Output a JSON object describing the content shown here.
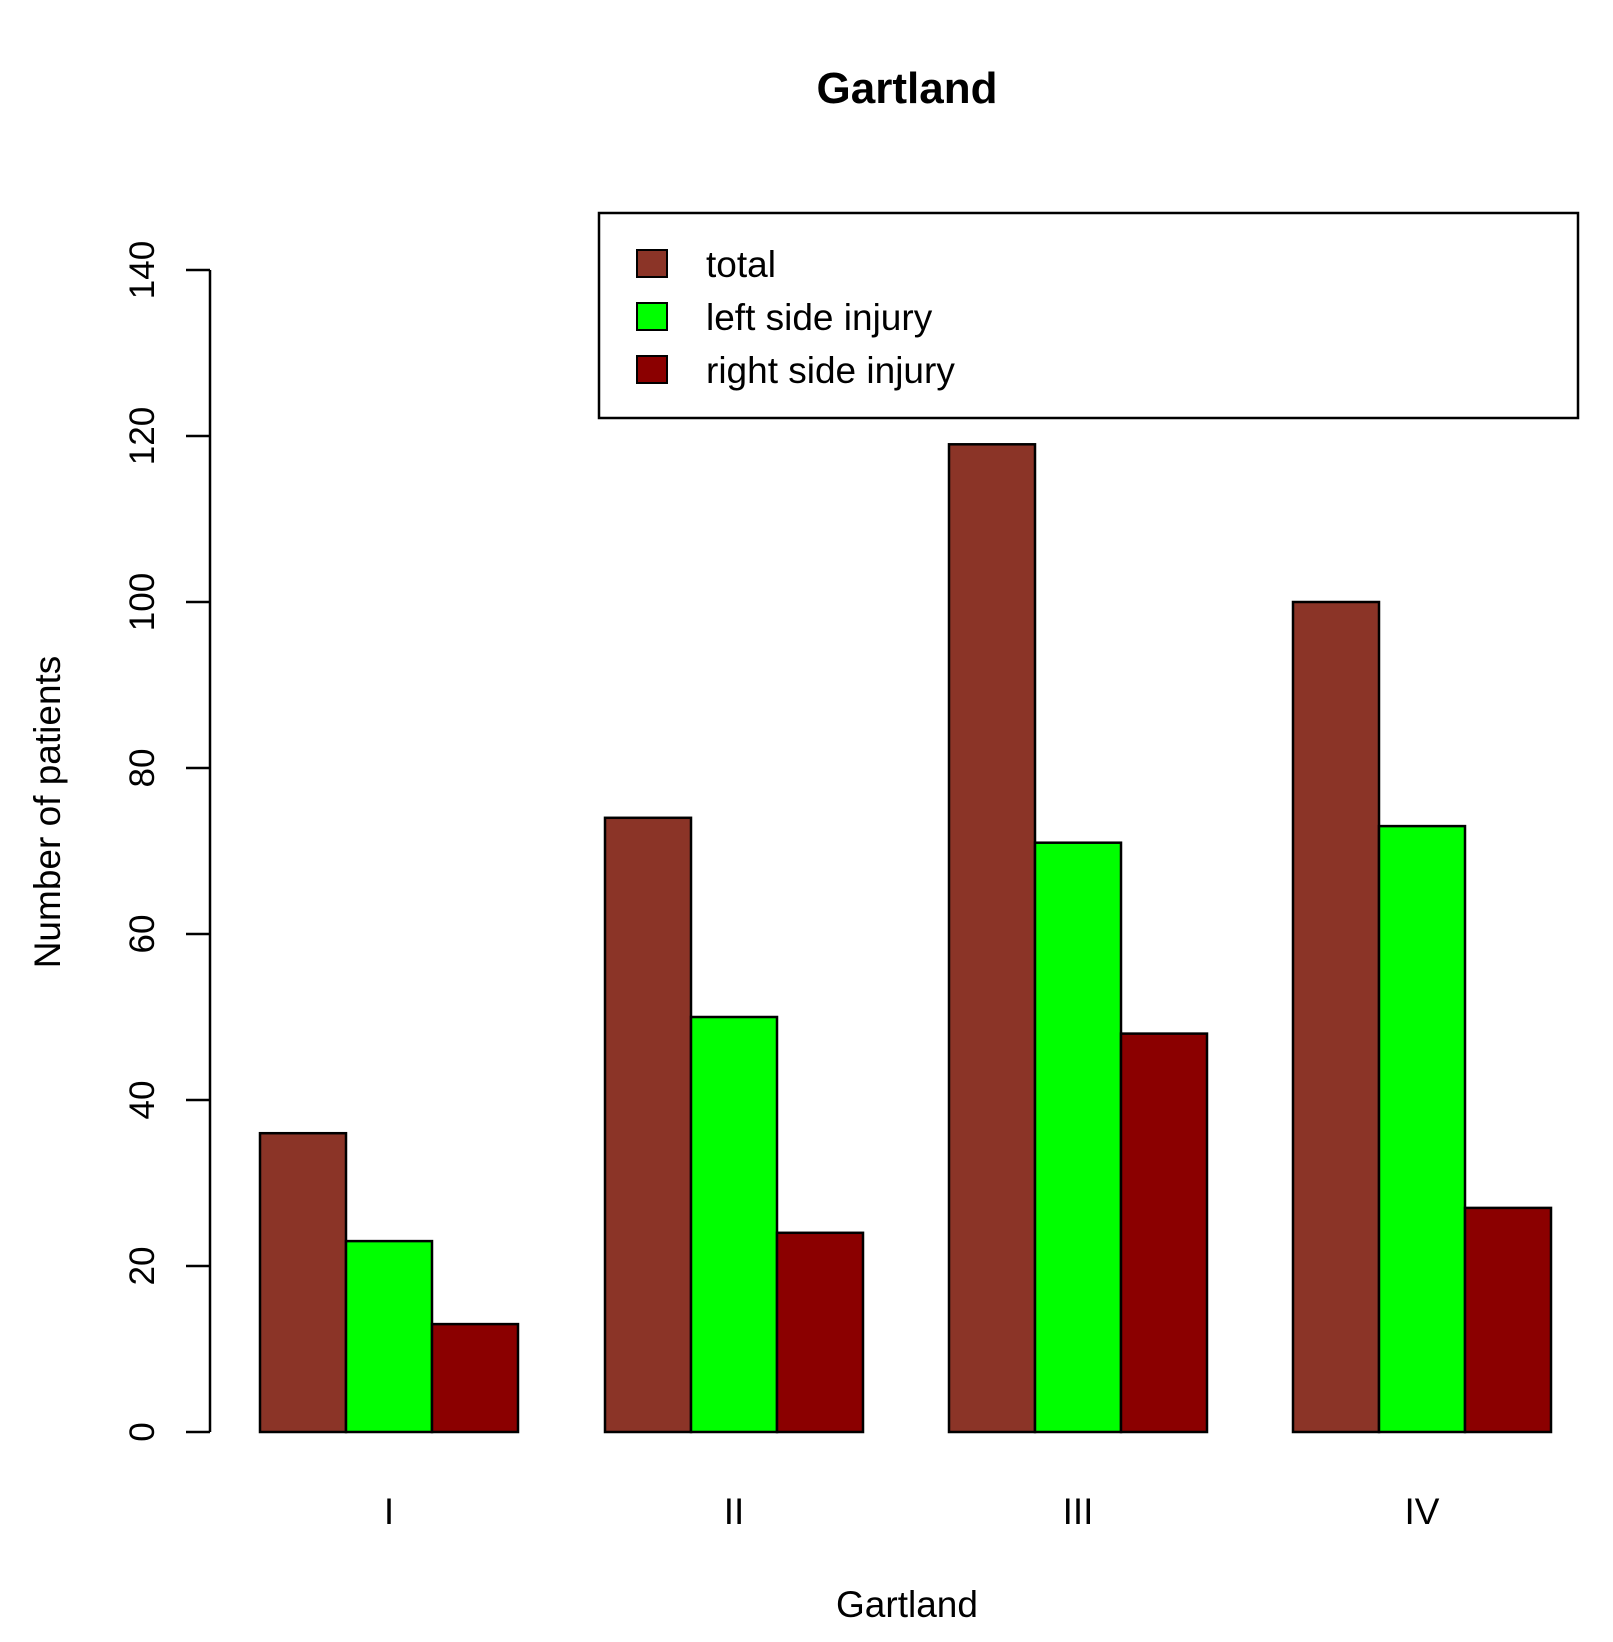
{
  "chart_data": {
    "type": "bar",
    "title": "Gartland",
    "xlabel": "Gartland",
    "ylabel": "Number of patients",
    "categories": [
      "I",
      "II",
      "III",
      "IV"
    ],
    "series": [
      {
        "name": "total",
        "color": "#8B3427",
        "values": [
          36,
          74,
          119,
          100
        ]
      },
      {
        "name": "left side injury",
        "color": "#00FF00",
        "values": [
          23,
          50,
          71,
          73
        ]
      },
      {
        "name": "right side injury",
        "color": "#8B0000",
        "values": [
          13,
          24,
          48,
          27
        ]
      }
    ],
    "ylim": [
      0,
      140
    ],
    "yticks": [
      0,
      20,
      40,
      60,
      80,
      100,
      120,
      140
    ],
    "grid": false,
    "legend_position": "top-right"
  }
}
